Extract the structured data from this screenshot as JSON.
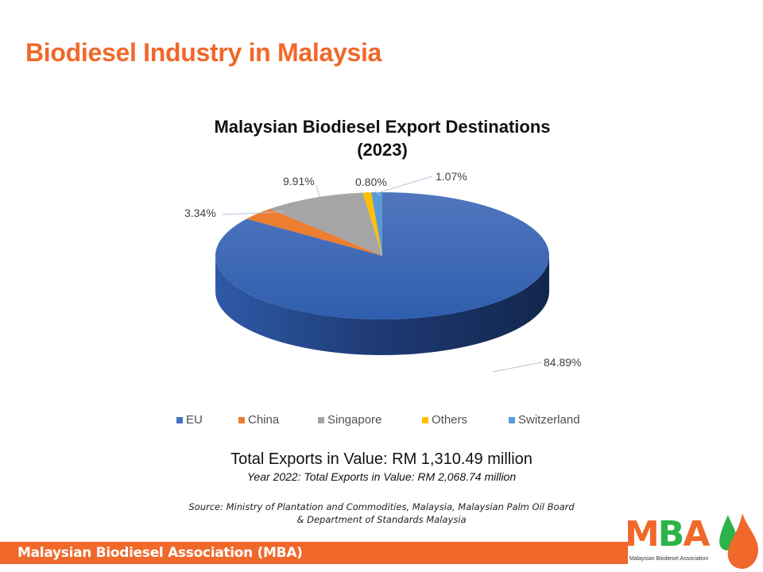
{
  "slide": {
    "title": "Biodiesel Industry in Malaysia",
    "footer": "Malaysian Biodiesel Association (MBA)",
    "logo": {
      "letters": [
        "M",
        "B",
        "A"
      ],
      "subtitle": "Malaysian Biodiesel Association",
      "icon": "twin-droplet-icon"
    }
  },
  "chart_data": {
    "type": "pie",
    "style": "3d",
    "title": "Malaysian Biodiesel Export Destinations",
    "subtitle": "(2023)",
    "categories": [
      "EU",
      "China",
      "Singapore",
      "Others",
      "Switzerland"
    ],
    "values": [
      84.89,
      3.34,
      9.91,
      0.8,
      1.07
    ],
    "labels": [
      "84.89%",
      "3.34%",
      "9.91%",
      "0.80%",
      "1.07%"
    ],
    "colors": [
      "#4472c4",
      "#ed7d31",
      "#a5a5a5",
      "#ffc000",
      "#5b9bd5"
    ],
    "legend_position": "bottom",
    "unit": "%"
  },
  "summary": {
    "total": "Total Exports in Value: RM 1,310.49 million",
    "previous": "Year 2022: Total Exports in Value: RM 2,068.74 million"
  },
  "source": {
    "line1": "Source:  Ministry of Plantation and Commodities, Malaysia, Malaysian Palm Oil Board",
    "line2": "& Department of Standards Malaysia"
  },
  "colors": {
    "accent": "#f0682a",
    "logo_green": "#2db34a"
  }
}
